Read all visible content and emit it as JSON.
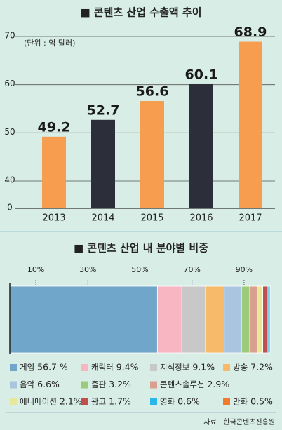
{
  "chart_data": [
    {
      "type": "bar",
      "title": "■ 콘텐츠 산업 수출액 추이",
      "unit": "(단위 : 억 달러)",
      "categories": [
        "2013",
        "2014",
        "2015",
        "2016",
        "2017"
      ],
      "values": [
        49.2,
        52.7,
        56.6,
        60.1,
        68.9
      ],
      "colors": [
        "#f79d50",
        "#2c2f3a",
        "#f79d50",
        "#2c2f3a",
        "#f79d50"
      ],
      "ylim": [
        0,
        70
      ],
      "y_break": 40,
      "yticks": [
        0,
        40,
        50,
        60,
        70
      ],
      "grid": true
    },
    {
      "type": "stacked_bar",
      "title": "■ 콘텐츠 산업 내 분야별 비중",
      "xlim": [
        0,
        100
      ],
      "xticks": [
        {
          "value": 10,
          "label": "10%"
        },
        {
          "value": 30,
          "label": "30%"
        },
        {
          "value": 50,
          "label": "50%"
        },
        {
          "value": 70,
          "label": "70%"
        },
        {
          "value": 90,
          "label": "90%"
        }
      ],
      "series": [
        {
          "name": "게임",
          "color": "#6fa6c9",
          "values": [
            56.7
          ],
          "value_labels": [
            "56.7 %"
          ]
        },
        {
          "name": "캐릭터",
          "color": "#f7b6c2",
          "values": [
            9.4
          ],
          "value_labels": [
            "9.4%"
          ]
        },
        {
          "name": "지식정보",
          "color": "#c8c8c8",
          "values": [
            9.1
          ],
          "value_labels": [
            "9.1%"
          ]
        },
        {
          "name": "방송",
          "color": "#f7b96a",
          "values": [
            7.2
          ],
          "value_labels": [
            "7.2%"
          ]
        },
        {
          "name": "음악",
          "color": "#a9c5e0",
          "values": [
            6.6
          ],
          "value_labels": [
            "6.6%"
          ]
        },
        {
          "name": "출판",
          "color": "#9ccc7a",
          "values": [
            3.2
          ],
          "value_labels": [
            "3.2%"
          ]
        },
        {
          "name": "콘텐츠솔루션",
          "color": "#d9a08f",
          "values": [
            2.9
          ],
          "value_labels": [
            "2.9%"
          ]
        },
        {
          "name": "애니메이션",
          "color": "#e8e89a",
          "values": [
            2.1
          ],
          "value_labels": [
            "2.1%"
          ]
        },
        {
          "name": "광고",
          "color": "#c0504d",
          "values": [
            1.7
          ],
          "value_labels": [
            "1.7%"
          ]
        },
        {
          "name": "영화",
          "color": "#29b6e8",
          "values": [
            0.6
          ],
          "value_labels": [
            "0.6%"
          ]
        },
        {
          "name": "만화",
          "color": "#f07b2a",
          "values": [
            0.5
          ],
          "value_labels": [
            "0.5%"
          ]
        }
      ],
      "source": "자료 | 한국콘텐츠진흥원"
    }
  ]
}
